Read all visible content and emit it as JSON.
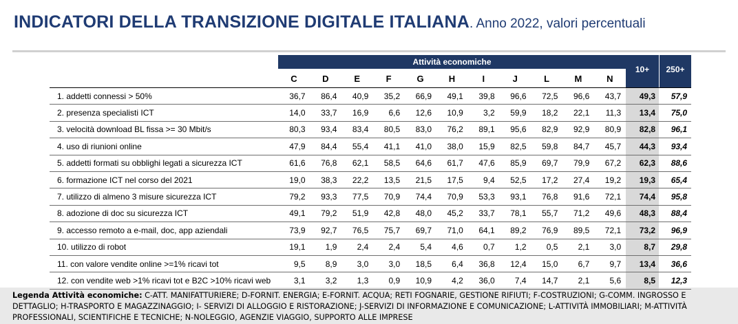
{
  "title": {
    "main": "INDICATORI DELLA TRANSIZIONE DIGITALE ITALIANA",
    "sub": ". Anno 2022, valori percentuali"
  },
  "table": {
    "group_header": "Attività economiche",
    "col_10": "10+",
    "col_250": "250+",
    "columns": [
      "C",
      "D",
      "E",
      "F",
      "G",
      "H",
      "I",
      "J",
      "L",
      "M",
      "N"
    ],
    "rows": [
      {
        "label": "1. addetti connessi > 50%",
        "values": [
          "36,7",
          "86,4",
          "40,9",
          "35,2",
          "66,9",
          "49,1",
          "39,8",
          "96,6",
          "72,5",
          "96,6",
          "43,7"
        ],
        "v10": "49,3",
        "v250": "57,9"
      },
      {
        "label": "2. presenza specialisti ICT",
        "values": [
          "14,0",
          "33,7",
          "16,9",
          "6,6",
          "12,6",
          "10,9",
          "3,2",
          "59,9",
          "18,2",
          "22,1",
          "11,3"
        ],
        "v10": "13,4",
        "v250": "75,0"
      },
      {
        "label": "3. velocità download BL fissa >= 30 Mbit/s",
        "values": [
          "80,3",
          "93,4",
          "83,4",
          "80,5",
          "83,0",
          "76,2",
          "89,1",
          "95,6",
          "82,9",
          "92,9",
          "80,9"
        ],
        "v10": "82,8",
        "v250": "96,1"
      },
      {
        "label": "4. uso di riunioni online",
        "values": [
          "47,9",
          "84,4",
          "55,4",
          "41,1",
          "41,0",
          "38,0",
          "15,9",
          "82,5",
          "59,8",
          "84,7",
          "45,7"
        ],
        "v10": "44,3",
        "v250": "93,4"
      },
      {
        "label": "5. addetti formati su obblighi legati a sicurezza ICT",
        "values": [
          "61,6",
          "76,8",
          "62,1",
          "58,5",
          "64,6",
          "61,7",
          "47,6",
          "85,9",
          "69,7",
          "79,9",
          "67,2"
        ],
        "v10": "62,3",
        "v250": "88,6"
      },
      {
        "label": "6. formazione ICT nel corso del 2021",
        "values": [
          "19,0",
          "38,3",
          "22,2",
          "13,5",
          "21,5",
          "17,5",
          "9,4",
          "52,5",
          "17,2",
          "27,4",
          "19,2"
        ],
        "v10": "19,3",
        "v250": "65,4"
      },
      {
        "label": "7. utilizzo di almeno 3 misure sicurezza ICT",
        "values": [
          "79,2",
          "93,3",
          "77,5",
          "70,9",
          "74,4",
          "70,9",
          "53,3",
          "93,1",
          "76,8",
          "91,6",
          "72,1"
        ],
        "v10": "74,4",
        "v250": "95,8"
      },
      {
        "label": "8. adozione di doc su sicurezza ICT",
        "values": [
          "49,1",
          "79,2",
          "51,9",
          "42,8",
          "48,0",
          "45,2",
          "33,7",
          "78,1",
          "55,7",
          "71,2",
          "49,6"
        ],
        "v10": "48,3",
        "v250": "88,4"
      },
      {
        "label": "9. accesso remoto a e-mail, doc, app aziendali",
        "values": [
          "73,9",
          "92,7",
          "76,5",
          "75,7",
          "69,7",
          "71,0",
          "64,1",
          "89,2",
          "76,9",
          "89,5",
          "72,1"
        ],
        "v10": "73,2",
        "v250": "96,9"
      },
      {
        "label": "10. utilizzo di robot",
        "values": [
          "19,1",
          "1,9",
          "2,4",
          "2,4",
          "5,4",
          "4,6",
          "0,7",
          "1,2",
          "0,5",
          "2,1",
          "3,0"
        ],
        "v10": "8,7",
        "v250": "29,8"
      },
      {
        "label": "11. con valore vendite online >=1% ricavi tot",
        "values": [
          "9,5",
          "8,9",
          "3,0",
          "3,0",
          "18,5",
          "6,4",
          "36,8",
          "12,4",
          "15,0",
          "6,7",
          "9,7"
        ],
        "v10": "13,4",
        "v250": "36,6"
      },
      {
        "label": "12. con vendite web >1% ricavi tot e B2C >10% ricavi web",
        "values": [
          "3,1",
          "3,2",
          "1,3",
          "0,9",
          "10,9",
          "4,2",
          "36,0",
          "7,4",
          "14,7",
          "2,1",
          "5,6"
        ],
        "v10": "8,5",
        "v250": "12,3"
      }
    ]
  },
  "legend": {
    "title": "Legenda Attività economiche:",
    "text": " C-ATT. MANIFATTURIERE; D-FORNIT. ENERGIA; E-FORNIT. ACQUA; RETI FOGNARIE, GESTIONE RIFIUTI; F-COSTRUZIONI; G-COMM. INGROSSO E DETTAGLIO; H-TRASPORTO E MAGAZZINAGGIO; I- SERVIZI DI ALLOGGIO E RISTORAZIONE; J-SERVIZI DI INFORMAZIONE E COMUNICAZIONE; L-ATTIVITÀ IMMOBILIARI; M-ATTIVITÀ PROFESSIONALI, SCIENTIFICHE E TECNICHE; N-NOLEGGIO, AGENZIE VIAGGIO, SUPPORTO ALLE IMPRESE"
  }
}
